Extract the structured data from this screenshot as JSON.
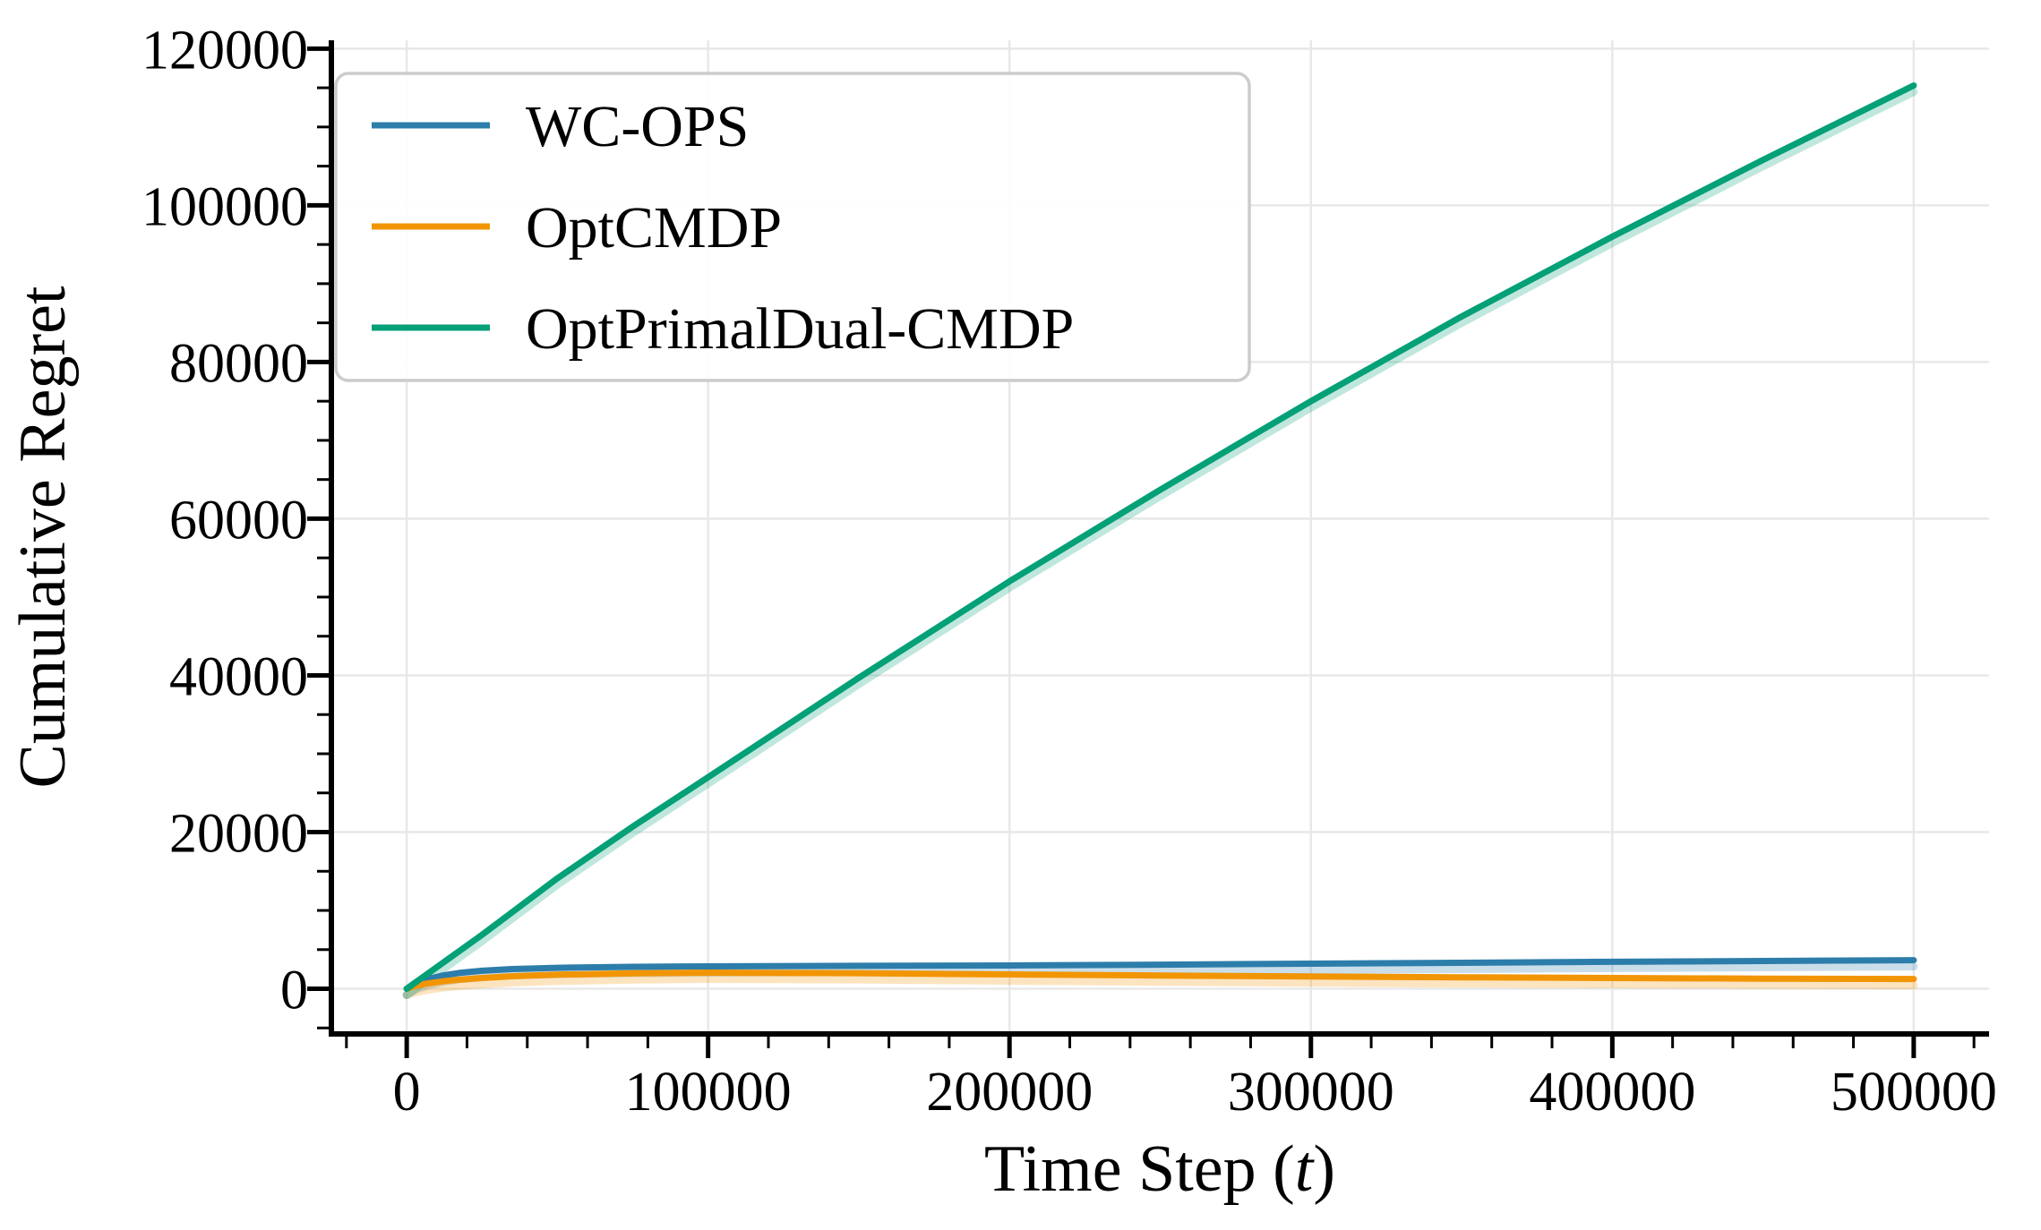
{
  "figure": {
    "background": "#ffffff",
    "spine_color": "#000000",
    "tick_color": "#000000"
  },
  "chart_data": {
    "type": "line",
    "title": "",
    "xlabel": "Time Step (t)",
    "xlabel_parts": [
      "Time Step (",
      "t",
      ")"
    ],
    "ylabel": "Cumulative Regret",
    "xlim": [
      -25000,
      525000
    ],
    "ylim": [
      -5765,
      121065
    ],
    "xtick_values": [
      0,
      100000,
      200000,
      300000,
      400000,
      500000
    ],
    "xtick_labels": [
      "0",
      "100000",
      "200000",
      "300000",
      "400000",
      "500000"
    ],
    "ytick_values": [
      0,
      20000,
      40000,
      60000,
      80000,
      100000,
      120000
    ],
    "ytick_labels": [
      "0",
      "20000",
      "40000",
      "60000",
      "80000",
      "100000",
      "120000"
    ],
    "minor_x_step": 20000,
    "minor_y_step": 5000,
    "grid": true,
    "grid_color": "#e8e8e8",
    "legend_position": "upper left",
    "series": [
      {
        "name": "WC-OPS",
        "color": "#2d7daa",
        "x": [
          0,
          3000,
          7000,
          12000,
          18000,
          25000,
          35000,
          50000,
          75000,
          100000,
          150000,
          200000,
          250000,
          300000,
          350000,
          400000,
          450000,
          500000
        ],
        "y": [
          0,
          700,
          1250,
          1700,
          2050,
          2300,
          2520,
          2680,
          2800,
          2865,
          2930,
          2980,
          3080,
          3200,
          3320,
          3440,
          3550,
          3650
        ]
      },
      {
        "name": "OptCMDP",
        "color": "#f29505",
        "x": [
          0,
          3000,
          7000,
          12000,
          18000,
          25000,
          35000,
          50000,
          75000,
          100000,
          150000,
          200000,
          250000,
          300000,
          350000,
          400000,
          450000,
          500000
        ],
        "y": [
          0,
          380,
          680,
          950,
          1180,
          1380,
          1600,
          1800,
          1970,
          2060,
          1990,
          1830,
          1700,
          1570,
          1470,
          1375,
          1300,
          1250
        ]
      },
      {
        "name": "OptPrimalDual-CMDP",
        "color": "#04a077",
        "x": [
          0,
          25000,
          50000,
          75000,
          100000,
          150000,
          200000,
          250000,
          300000,
          350000,
          400000,
          450000,
          500000
        ],
        "y": [
          0,
          6900,
          14100,
          20700,
          27000,
          39700,
          52000,
          63700,
          75000,
          85800,
          96000,
          105800,
          115300
        ]
      }
    ]
  }
}
